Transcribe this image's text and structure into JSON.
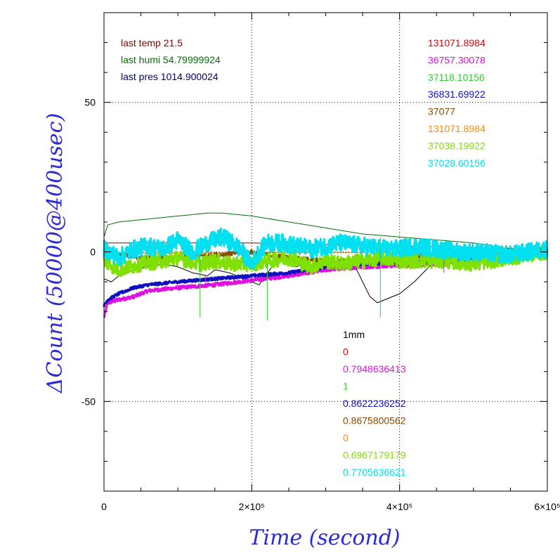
{
  "chart_data": {
    "type": "line",
    "title": "",
    "xlabel": "Time (second)",
    "ylabel": "ΔCount (50000@400usec)",
    "xlim": [
      0,
      600000
    ],
    "ylim": [
      -80,
      80
    ],
    "grid": true,
    "x_ticks": [
      {
        "value": 0,
        "label": "0"
      },
      {
        "value": 200000,
        "label": "2×10⁵"
      },
      {
        "value": 400000,
        "label": "4×10⁵"
      },
      {
        "value": 600000,
        "label": "6×10⁵"
      }
    ],
    "y_ticks": [
      {
        "value": 50,
        "label": "50"
      },
      {
        "value": 0,
        "label": "0"
      },
      {
        "value": -50,
        "label": "-50"
      }
    ],
    "top_left_legend": [
      {
        "text": "last temp 21.5",
        "color": "#8b0000"
      },
      {
        "text": "last humi 54.79999924",
        "color": "#007000"
      },
      {
        "text": "last pres 1014.900024",
        "color": "#000070"
      }
    ],
    "top_right_legend": [
      {
        "text": "131071.8984",
        "color": "#e00000"
      },
      {
        "text": "36757.30078",
        "color": "#e010e0"
      },
      {
        "text": "37118.10156",
        "color": "#30d030"
      },
      {
        "text": "36831.69922",
        "color": "#1010c0"
      },
      {
        "text": "37077",
        "color": "#8b4a00"
      },
      {
        "text": "131071.8984",
        "color": "#ff8c00"
      },
      {
        "text": "37038.19922",
        "color": "#80e000"
      },
      {
        "text": "37028.60156",
        "color": "#00e0f0"
      }
    ],
    "bottom_legend": [
      {
        "text": "1mm",
        "color": "#000000"
      },
      {
        "text": "0",
        "color": "#e00000"
      },
      {
        "text": "0.7948636413",
        "color": "#e010e0"
      },
      {
        "text": "1",
        "color": "#30d030"
      },
      {
        "text": "0.8622236252",
        "color": "#1010c0"
      },
      {
        "text": "0.8675800562",
        "color": "#8b4a00"
      },
      {
        "text": "0",
        "color": "#ff8c00"
      },
      {
        "text": "0.6967179179",
        "color": "#80e000"
      },
      {
        "text": "0.7705636621",
        "color": "#00e0f0"
      }
    ],
    "series": [
      {
        "color": "#007000",
        "width": 1,
        "noise": 0,
        "x": [
          0,
          5000,
          20000,
          60000,
          100000,
          140000,
          160000,
          200000,
          250000,
          300000,
          350000,
          400000,
          450000,
          500000,
          550000,
          600000
        ],
        "y": [
          5,
          9,
          10,
          11,
          12,
          13,
          13,
          12,
          10,
          8,
          6,
          5,
          4,
          3,
          1,
          1
        ]
      },
      {
        "color": "#8b0000",
        "width": 1,
        "noise": 0,
        "x": [
          0,
          100000,
          200000,
          300000,
          400000,
          500000,
          600000
        ],
        "y": [
          3,
          3,
          3,
          2.5,
          2,
          1.5,
          1
        ]
      },
      {
        "color": "#000000",
        "width": 1,
        "noise": 0,
        "x": [
          0,
          10000,
          20000,
          40000,
          60000,
          80000,
          100000,
          120000,
          140000,
          150000,
          170000,
          190000,
          200000,
          210000,
          230000,
          240000,
          260000,
          280000,
          300000,
          320000,
          340000,
          350000,
          360000,
          370000,
          380000,
          400000,
          420000,
          440000,
          450000,
          460000,
          500000,
          550000,
          600000
        ],
        "y": [
          -9,
          -10,
          -8,
          -6,
          -5,
          -4,
          -5,
          -7,
          -8,
          -6,
          -7,
          -9,
          -10,
          -11,
          -4,
          -2,
          -5,
          -3,
          -4,
          -3,
          -5,
          -10,
          -15,
          -17,
          -16,
          -14,
          -10,
          -5,
          -4,
          -3,
          -2,
          0,
          1
        ]
      },
      {
        "color": "#ff8c00",
        "width": 1.5,
        "noise": 0,
        "x": [
          0,
          200000,
          400000,
          600000
        ],
        "y": [
          -0.5,
          -0.3,
          -0.2,
          0
        ]
      },
      {
        "color": "#e010e0",
        "width": 3,
        "noise": 0.6,
        "x": [
          0,
          5000,
          20000,
          40000,
          60000,
          100000,
          150000,
          200000,
          250000,
          300000,
          350000,
          400000,
          450000,
          500000,
          550000,
          600000
        ],
        "y": [
          -22,
          -17,
          -16,
          -15,
          -13,
          -12,
          -11,
          -9.5,
          -8,
          -6,
          -5,
          -4.5,
          -4,
          -3,
          -2,
          0
        ]
      },
      {
        "color": "#1010c0",
        "width": 3,
        "noise": 0.5,
        "x": [
          0,
          5000,
          20000,
          40000,
          60000,
          100000,
          150000,
          200000,
          250000,
          300000,
          350000,
          400000,
          450000,
          500000,
          550000,
          600000
        ],
        "y": [
          -18,
          -16,
          -14,
          -12,
          -11,
          -10,
          -9,
          -8,
          -7,
          -5,
          -4,
          -3.5,
          -3,
          -2,
          -1,
          0
        ]
      },
      {
        "color": "#8b4a00",
        "width": 2,
        "noise": 0.8,
        "x": [
          0,
          50000,
          100000,
          150000,
          200000,
          250000,
          300000,
          350000,
          400000,
          450000,
          500000,
          550000,
          600000
        ],
        "y": [
          0,
          -2,
          -2,
          -1,
          0,
          -2,
          -3,
          -3,
          -2,
          -1,
          -1,
          0,
          1
        ]
      },
      {
        "color": "#80e000",
        "width": 3,
        "noise": 2.5,
        "x": [
          0,
          20000,
          50000,
          80000,
          100000,
          130000,
          150000,
          170000,
          200000,
          220000,
          250000,
          280000,
          300000,
          320000,
          350000,
          380000,
          400000,
          430000,
          460000,
          500000,
          550000,
          600000
        ],
        "y": [
          -3,
          -6,
          -4,
          -3,
          -2,
          -4,
          -3,
          -4,
          -4,
          -3,
          -2,
          -5,
          -3,
          -4,
          -3,
          -2,
          -3,
          -3,
          -3,
          -4,
          -2,
          0
        ]
      },
      {
        "color": "#00e0f0",
        "width": 3,
        "noise": 3,
        "x": [
          0,
          20000,
          40000,
          60000,
          80000,
          100000,
          120000,
          140000,
          160000,
          180000,
          200000,
          210000,
          220000,
          240000,
          260000,
          280000,
          300000,
          320000,
          350000,
          380000,
          400000,
          420000,
          450000,
          480000,
          500000,
          550000,
          600000
        ],
        "y": [
          1,
          -2,
          1,
          2,
          1,
          4,
          0,
          3,
          5,
          2,
          -4,
          0,
          3,
          3,
          2,
          1,
          2,
          3,
          2,
          1,
          1,
          2,
          1,
          0,
          0,
          -1,
          1
        ]
      },
      {
        "color": "#30d030",
        "width": 1,
        "noise": 0,
        "x": [
          130000,
          130000
        ],
        "y": [
          -1,
          -22
        ]
      },
      {
        "color": "#30d030",
        "width": 1,
        "noise": 0,
        "x": [
          221000,
          221000
        ],
        "y": [
          -4,
          -23
        ]
      },
      {
        "color": "#30d030",
        "width": 1,
        "noise": 0,
        "x": [
          374000,
          374000
        ],
        "y": [
          5,
          -22
        ]
      },
      {
        "color": "#e010e0",
        "width": 1,
        "noise": 0,
        "x": [
          137000,
          137000
        ],
        "y": [
          -8,
          -10
        ]
      },
      {
        "color": "#e010e0",
        "width": 1,
        "noise": 0,
        "x": [
          460000,
          460000
        ],
        "y": [
          -3,
          -7
        ]
      }
    ]
  }
}
